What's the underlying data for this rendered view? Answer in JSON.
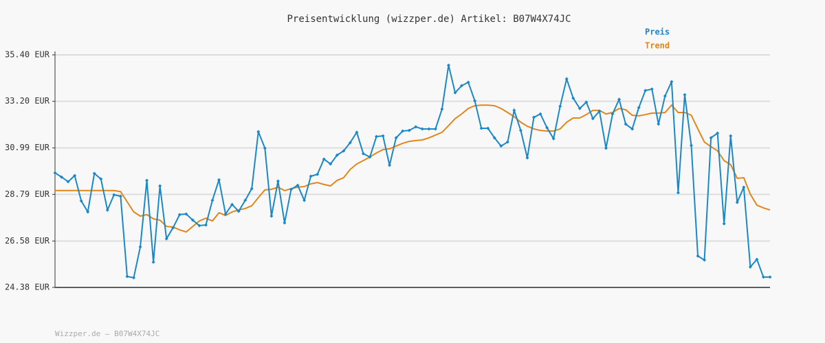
{
  "chart_data": {
    "type": "line",
    "title": "Preisentwicklung (wizzper.de) Artikel: B07W4X74JC",
    "footer": "Wizzper.de – B07W4X74JC",
    "ylim": [
      24.38,
      35.4
    ],
    "yticks": [
      {
        "value": 24.38,
        "label": "24.38 EUR"
      },
      {
        "value": 26.58,
        "label": "26.58 EUR"
      },
      {
        "value": 28.79,
        "label": "28.79 EUR"
      },
      {
        "value": 30.99,
        "label": "30.99 EUR"
      },
      {
        "value": 33.2,
        "label": "33.20 EUR"
      },
      {
        "value": 35.4,
        "label": "35.40 EUR"
      }
    ],
    "grid": true,
    "legend": "top-right",
    "series": [
      {
        "name": "Preis",
        "color": "#1a87c6",
        "markers": true,
        "values": [
          29.81,
          29.61,
          29.39,
          29.68,
          28.48,
          27.96,
          29.78,
          29.52,
          28.05,
          28.77,
          28.7,
          24.9,
          24.84,
          26.3,
          29.45,
          25.58,
          29.19,
          26.69,
          27.21,
          27.83,
          27.86,
          27.57,
          27.31,
          27.34,
          28.51,
          29.48,
          27.86,
          28.31,
          27.99,
          28.51,
          29.06,
          31.76,
          30.98,
          27.76,
          29.42,
          27.44,
          29.03,
          29.22,
          28.51,
          29.65,
          29.74,
          30.46,
          30.23,
          30.65,
          30.85,
          31.24,
          31.73,
          30.72,
          30.56,
          31.53,
          31.56,
          30.17,
          31.47,
          31.79,
          31.82,
          31.99,
          31.89,
          31.89,
          31.89,
          32.83,
          34.91,
          33.61,
          33.94,
          34.1,
          33.22,
          31.92,
          31.92,
          31.47,
          31.08,
          31.27,
          32.77,
          31.82,
          30.52,
          32.44,
          32.6,
          31.95,
          31.43,
          32.96,
          34.26,
          33.35,
          32.86,
          33.16,
          32.38,
          32.73,
          30.98,
          32.6,
          33.29,
          32.12,
          31.89,
          32.9,
          33.71,
          33.78,
          32.12,
          33.45,
          34.13,
          28.87,
          33.51,
          31.11,
          25.87,
          25.68,
          31.47,
          31.69,
          27.4,
          31.56,
          28.41,
          29.13,
          25.35,
          25.71,
          24.87,
          24.87
        ]
      },
      {
        "name": "Trend",
        "color": "#e0861a",
        "markers": false,
        "values": [
          28.97,
          28.97,
          28.97,
          28.97,
          28.97,
          28.97,
          28.97,
          28.97,
          28.97,
          28.97,
          28.92,
          28.44,
          27.96,
          27.76,
          27.83,
          27.63,
          27.57,
          27.27,
          27.24,
          27.11,
          27.01,
          27.27,
          27.53,
          27.66,
          27.53,
          27.92,
          27.79,
          27.96,
          28.05,
          28.12,
          28.25,
          28.64,
          29.0,
          29.03,
          29.13,
          28.97,
          29.06,
          29.13,
          29.16,
          29.29,
          29.35,
          29.26,
          29.19,
          29.45,
          29.58,
          29.97,
          30.23,
          30.39,
          30.56,
          30.75,
          30.91,
          30.95,
          31.08,
          31.21,
          31.3,
          31.34,
          31.37,
          31.47,
          31.6,
          31.73,
          32.05,
          32.38,
          32.6,
          32.86,
          32.99,
          33.02,
          33.02,
          32.99,
          32.86,
          32.67,
          32.47,
          32.21,
          32.02,
          31.89,
          31.82,
          31.79,
          31.79,
          31.89,
          32.21,
          32.41,
          32.41,
          32.57,
          32.77,
          32.77,
          32.6,
          32.67,
          32.86,
          32.8,
          32.54,
          32.51,
          32.57,
          32.64,
          32.64,
          32.67,
          33.02,
          32.67,
          32.67,
          32.54,
          31.89,
          31.27,
          31.05,
          30.85,
          30.39,
          30.2,
          29.55,
          29.58,
          28.8,
          28.28,
          28.15,
          28.05
        ]
      }
    ]
  }
}
